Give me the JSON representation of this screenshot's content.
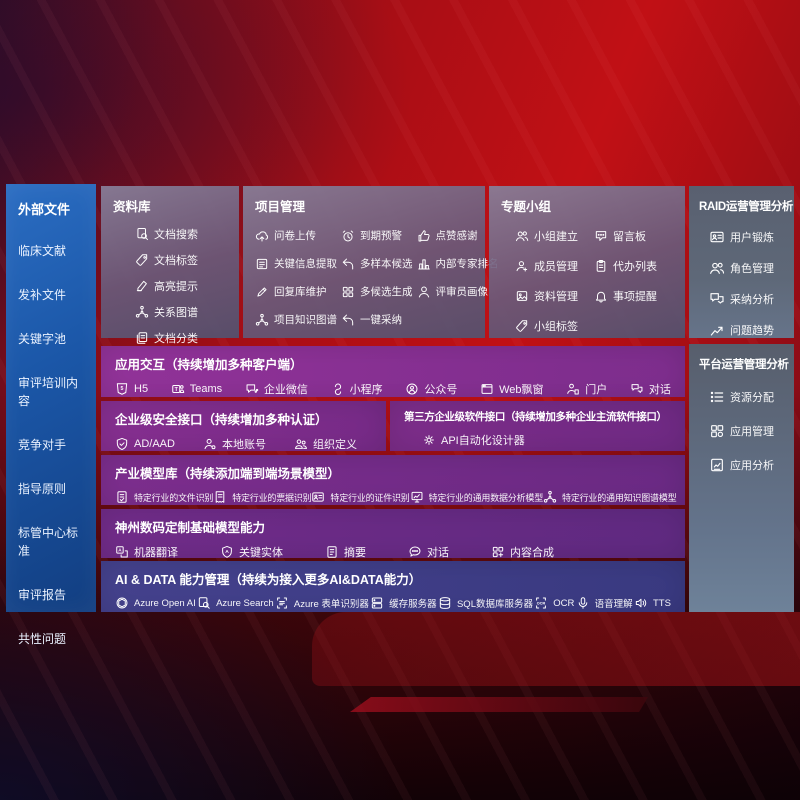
{
  "colors": {
    "sidebar_blue": "#1b57a8",
    "panel_gray": "#77698a",
    "panel_steel": "#5d6674",
    "row_purple": "#7c2d8d",
    "row_indigo": "#3e3b86",
    "background_red": "#b80f15",
    "text": "#ffffff"
  },
  "left_sidebar": {
    "title": "外部文件",
    "items": [
      "临床文献",
      "发补文件",
      "关键字池",
      "审评培训内容",
      "竞争对手",
      "指导原则",
      "标管中心标准",
      "审评报告",
      "共性问题"
    ]
  },
  "panels": {
    "repository": {
      "title": "资料库",
      "items": [
        {
          "label": "文档搜索",
          "icon": "doc-search-icon"
        },
        {
          "label": "文档标签",
          "icon": "tag-icon"
        },
        {
          "label": "高亮提示",
          "icon": "highlight-pen-icon"
        },
        {
          "label": "关系图谱",
          "icon": "graph-icon"
        },
        {
          "label": "文档分类",
          "icon": "doc-copy-icon"
        }
      ]
    },
    "project": {
      "title": "项目管理",
      "items": [
        {
          "label": "问卷上传",
          "icon": "cloud-upload-icon"
        },
        {
          "label": "到期预警",
          "icon": "alarm-icon"
        },
        {
          "label": "点赞感谢",
          "icon": "thumbs-up-icon"
        },
        {
          "label": "关键信息提取",
          "icon": "doc-extract-icon"
        },
        {
          "label": "多样本候选",
          "icon": "reply-arrow-icon"
        },
        {
          "label": "内部专家排名",
          "icon": "ranking-icon"
        },
        {
          "label": "回复库维护",
          "icon": "pen-icon"
        },
        {
          "label": "多候选生成",
          "icon": "grid-gen-icon"
        },
        {
          "label": "评审员画像",
          "icon": "person-icon"
        },
        {
          "label": "项目知识图谱",
          "icon": "knowledge-graph-icon"
        },
        {
          "label": "一键采纳",
          "icon": "adopt-arrow-icon"
        }
      ]
    },
    "group": {
      "title": "专题小组",
      "items": [
        {
          "label": "小组建立",
          "icon": "people-icon"
        },
        {
          "label": "留言板",
          "icon": "bbs-icon"
        },
        {
          "label": "成员管理",
          "icon": "member-icon"
        },
        {
          "label": "代办列表",
          "icon": "todo-list-icon"
        },
        {
          "label": "资料管理",
          "icon": "photo-doc-icon"
        },
        {
          "label": "事项提醒",
          "icon": "bell-icon"
        },
        {
          "label": "小组标签",
          "icon": "tag-icon"
        }
      ]
    },
    "raid": {
      "title": "RAID运营管理分析",
      "items": [
        {
          "label": "用户锻炼",
          "icon": "id-card-icon"
        },
        {
          "label": "角色管理",
          "icon": "people-icon"
        },
        {
          "label": "采纳分析",
          "icon": "qa-chat-icon"
        },
        {
          "label": "问题趋势",
          "icon": "trend-icon"
        }
      ]
    },
    "platform": {
      "title": "平台运营管理分析",
      "items": [
        {
          "label": "资源分配",
          "icon": "list-icon"
        },
        {
          "label": "应用管理",
          "icon": "apps-icon"
        },
        {
          "label": "应用分析",
          "icon": "report-icon"
        }
      ]
    },
    "interaction": {
      "title": "应用交互（持续增加多种客户端）",
      "items": [
        {
          "label": "H5",
          "icon": "h5-icon"
        },
        {
          "label": "Teams",
          "icon": "teams-icon"
        },
        {
          "label": "企业微信",
          "icon": "wechat-work-icon"
        },
        {
          "label": "小程序",
          "icon": "miniprogram-icon"
        },
        {
          "label": "公众号",
          "icon": "official-account-icon"
        },
        {
          "label": "Web飘窗",
          "icon": "web-window-icon"
        },
        {
          "label": "门户",
          "icon": "portal-icon"
        },
        {
          "label": "对话",
          "icon": "dialog-icon"
        }
      ]
    },
    "security": {
      "title": "企业级安全接口（持续增加多种认证）",
      "items": [
        {
          "label": "AD/AAD",
          "icon": "ad-shield-icon"
        },
        {
          "label": "本地账号",
          "icon": "local-account-icon"
        },
        {
          "label": "组织定义",
          "icon": "org-icon"
        }
      ]
    },
    "thirdparty": {
      "title": "第三方企业级软件接口（持续增加多种企业主流软件接口）",
      "items": [
        {
          "label": "API自动化设计器",
          "icon": "api-gear-icon"
        }
      ]
    },
    "industry": {
      "title": "产业模型库（持续添加端到端场景模型）",
      "items": [
        {
          "label": "特定行业的文件识别",
          "icon": "file-recog-icon"
        },
        {
          "label": "特定行业的票据识别",
          "icon": "bill-recog-icon"
        },
        {
          "label": "特定行业的证件识别",
          "icon": "id-card-icon"
        },
        {
          "label": "特定行业的通用数据分析模型",
          "icon": "data-model-icon"
        },
        {
          "label": "特定行业的通用知识图谱模型",
          "icon": "knowledge-graph-icon"
        }
      ]
    },
    "foundation": {
      "title": "神州数码定制基础模型能力",
      "items": [
        {
          "label": "机器翻译",
          "icon": "translate-icon"
        },
        {
          "label": "关键实体",
          "icon": "entity-icon"
        },
        {
          "label": "摘要",
          "icon": "summary-icon"
        },
        {
          "label": "对话",
          "icon": "chat-icon"
        },
        {
          "label": "内容合成",
          "icon": "compose-icon"
        }
      ]
    },
    "aidata": {
      "title": "AI & DATA 能力管理（持续为接入更多AI&DATA能力）",
      "items": [
        {
          "label": "Azure Open AI",
          "icon": "openai-icon"
        },
        {
          "label": "Azure Search",
          "icon": "azure-search-icon"
        },
        {
          "label": "Azure 表单识别器",
          "icon": "form-recognizer-icon"
        },
        {
          "label": "缓存服务器",
          "icon": "cache-server-icon"
        },
        {
          "label": "SQL数据库服务器",
          "icon": "sql-db-icon"
        },
        {
          "label": "OCR",
          "icon": "ocr-icon"
        },
        {
          "label": "语音理解",
          "icon": "speech-icon"
        },
        {
          "label": "TTS",
          "icon": "tts-icon"
        }
      ]
    }
  }
}
